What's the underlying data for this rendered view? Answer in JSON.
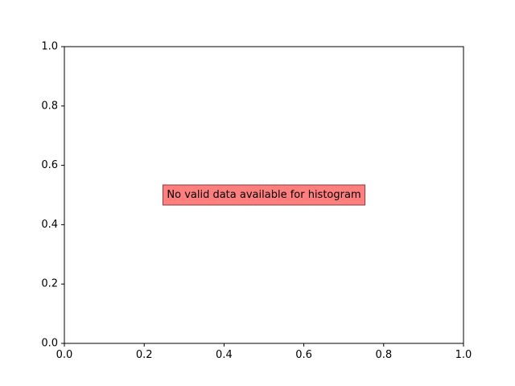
{
  "chart_data": {
    "type": "bar",
    "title": "",
    "xlabel": "",
    "ylabel": "",
    "xlim": [
      0,
      1
    ],
    "ylim": [
      0,
      1
    ],
    "xticks": [
      "0.0",
      "0.2",
      "0.4",
      "0.6",
      "0.8",
      "1.0"
    ],
    "yticks": [
      "0.0",
      "0.2",
      "0.4",
      "0.6",
      "0.8",
      "1.0"
    ],
    "grid": false,
    "series": [],
    "annotation": {
      "text": "No valid data available for histogram",
      "x": 0.5,
      "y": 0.5,
      "background_color": "#ff7f7f",
      "border_color": "#7f3f3f"
    }
  }
}
